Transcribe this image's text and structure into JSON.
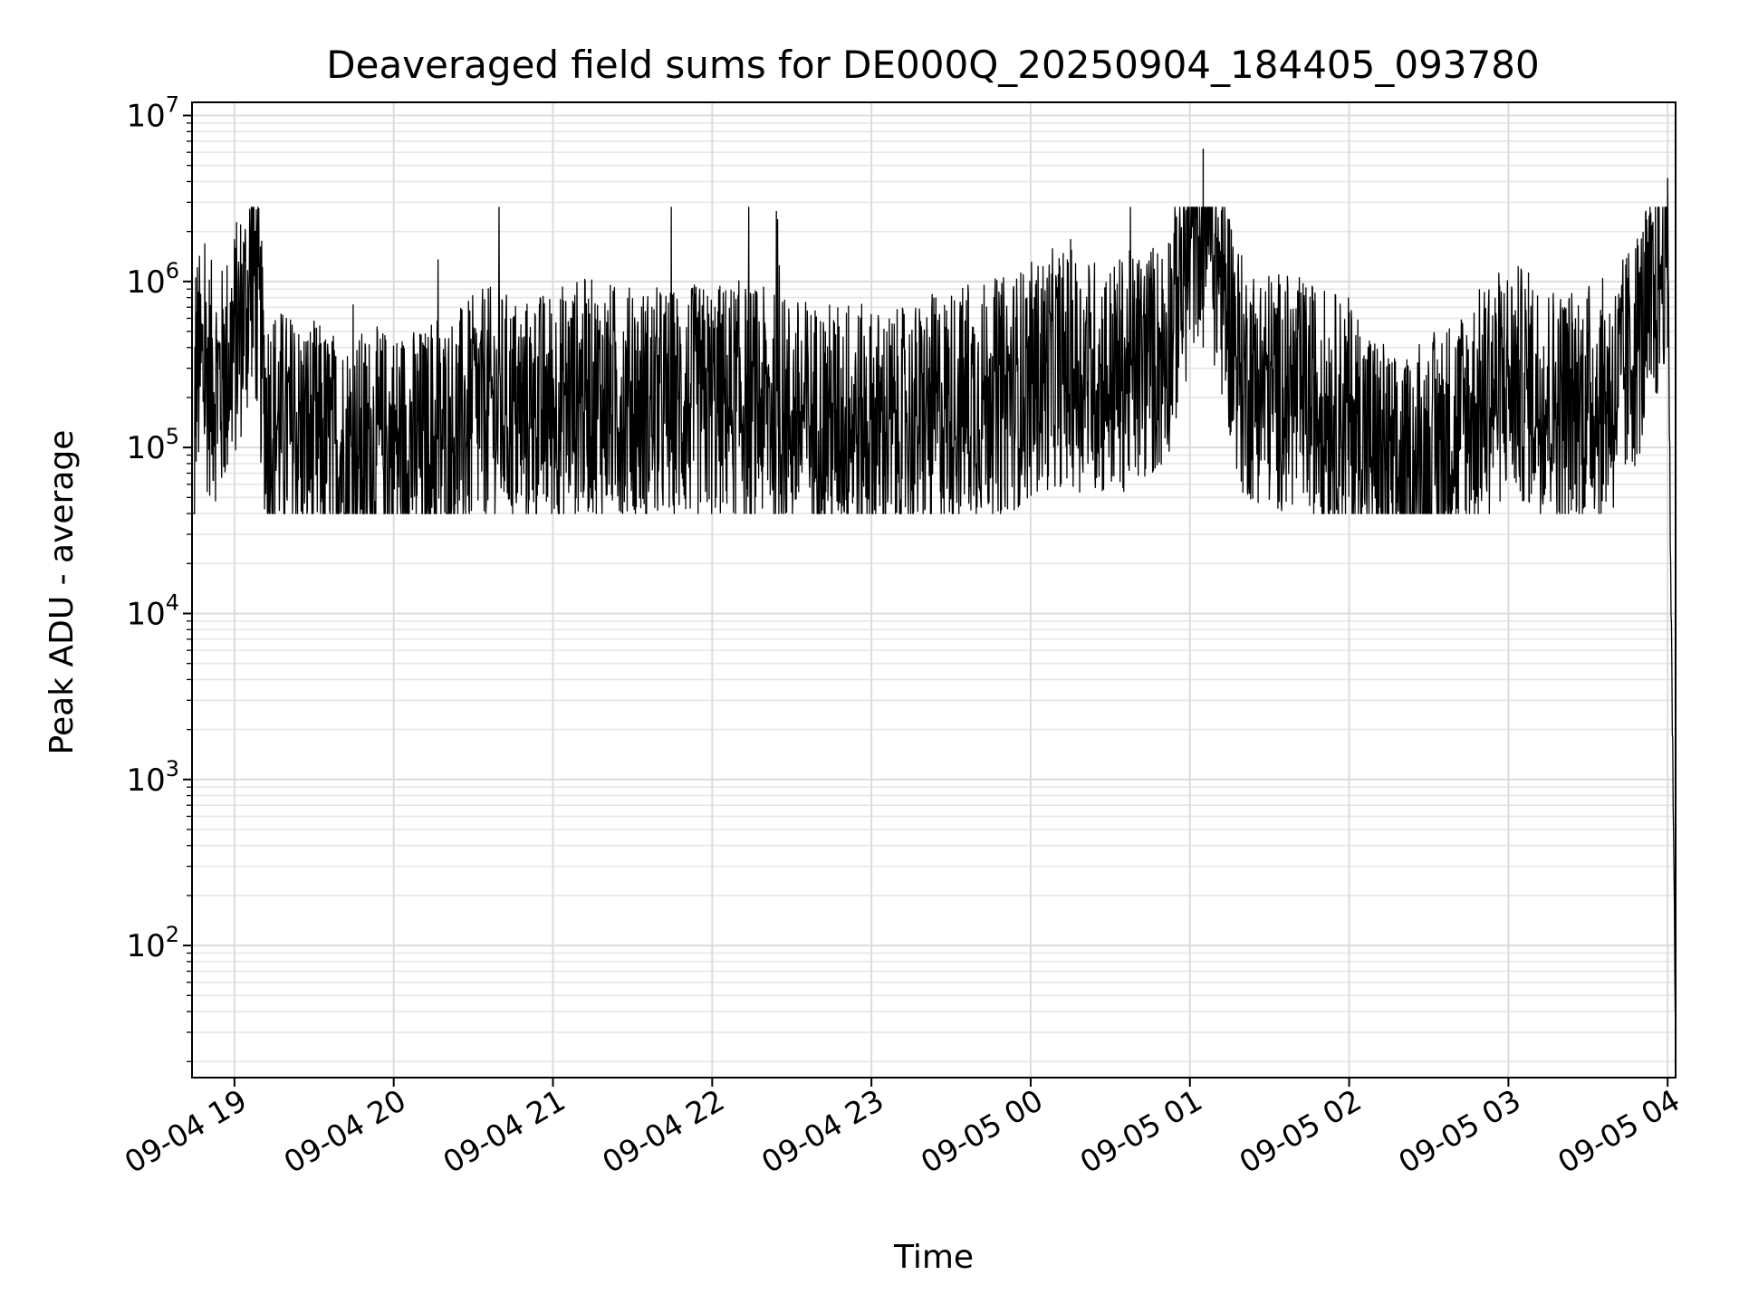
{
  "chart_data": {
    "type": "line",
    "title": "Deaveraged field sums for DE000Q_20250904_184405_093780",
    "xlabel": "Time",
    "ylabel": "Peak ADU - average",
    "x_scale": "time",
    "y_scale": "log",
    "xlim": [
      "2025-09-04 18:44",
      "2025-09-05 04:03"
    ],
    "ylim": [
      16,
      12000000
    ],
    "grid": true,
    "x_tick_labels": [
      "09-04 19",
      "09-04 20",
      "09-04 21",
      "09-04 22",
      "09-04 23",
      "09-05 00",
      "09-05 01",
      "09-05 02",
      "09-05 03",
      "09-05 04"
    ],
    "y_tick_labels": [
      {
        "base": "10",
        "exp": "2"
      },
      {
        "base": "10",
        "exp": "3"
      },
      {
        "base": "10",
        "exp": "4"
      },
      {
        "base": "10",
        "exp": "5"
      },
      {
        "base": "10",
        "exp": "6"
      },
      {
        "base": "10",
        "exp": "7"
      }
    ],
    "line_color": "#000000",
    "series": [
      {
        "x": [
          "2025-09-04 18:45",
          "2025-09-04 18:55",
          "2025-09-04 19:05",
          "2025-09-04 19:07",
          "2025-09-04 19:12",
          "2025-09-04 19:20",
          "2025-09-04 19:30",
          "2025-09-04 19:40",
          "2025-09-04 19:55",
          "2025-09-04 20:15",
          "2025-09-04 20:35",
          "2025-09-04 20:50",
          "2025-09-04 21:10",
          "2025-09-04 21:30",
          "2025-09-04 21:50",
          "2025-09-04 22:10",
          "2025-09-04 22:30",
          "2025-09-04 22:50",
          "2025-09-04 23:10",
          "2025-09-04 23:30",
          "2025-09-04 23:50",
          "2025-09-05 00:10",
          "2025-09-05 00:30",
          "2025-09-05 00:50",
          "2025-09-05 01:05",
          "2025-09-05 01:20",
          "2025-09-05 01:40",
          "2025-09-05 02:00",
          "2025-09-05 02:20",
          "2025-09-05 02:40",
          "2025-09-05 03:00",
          "2025-09-05 03:20",
          "2025-09-05 03:40",
          "2025-09-05 03:55",
          "2025-09-05 04:00",
          "2025-09-05 04:01",
          "2025-09-05 04:02",
          "2025-09-05 04:03"
        ],
        "y": [
          600000,
          450000,
          1500000,
          2800000,
          300000,
          250000,
          220000,
          180000,
          200000,
          200000,
          350000,
          300000,
          400000,
          350000,
          350000,
          380000,
          300000,
          280000,
          250000,
          350000,
          400000,
          600000,
          500000,
          700000,
          6300000,
          500000,
          400000,
          300000,
          120000,
          250000,
          500000,
          350000,
          400000,
          1400000,
          4200000,
          30000,
          1200,
          30
        ]
      }
    ]
  }
}
